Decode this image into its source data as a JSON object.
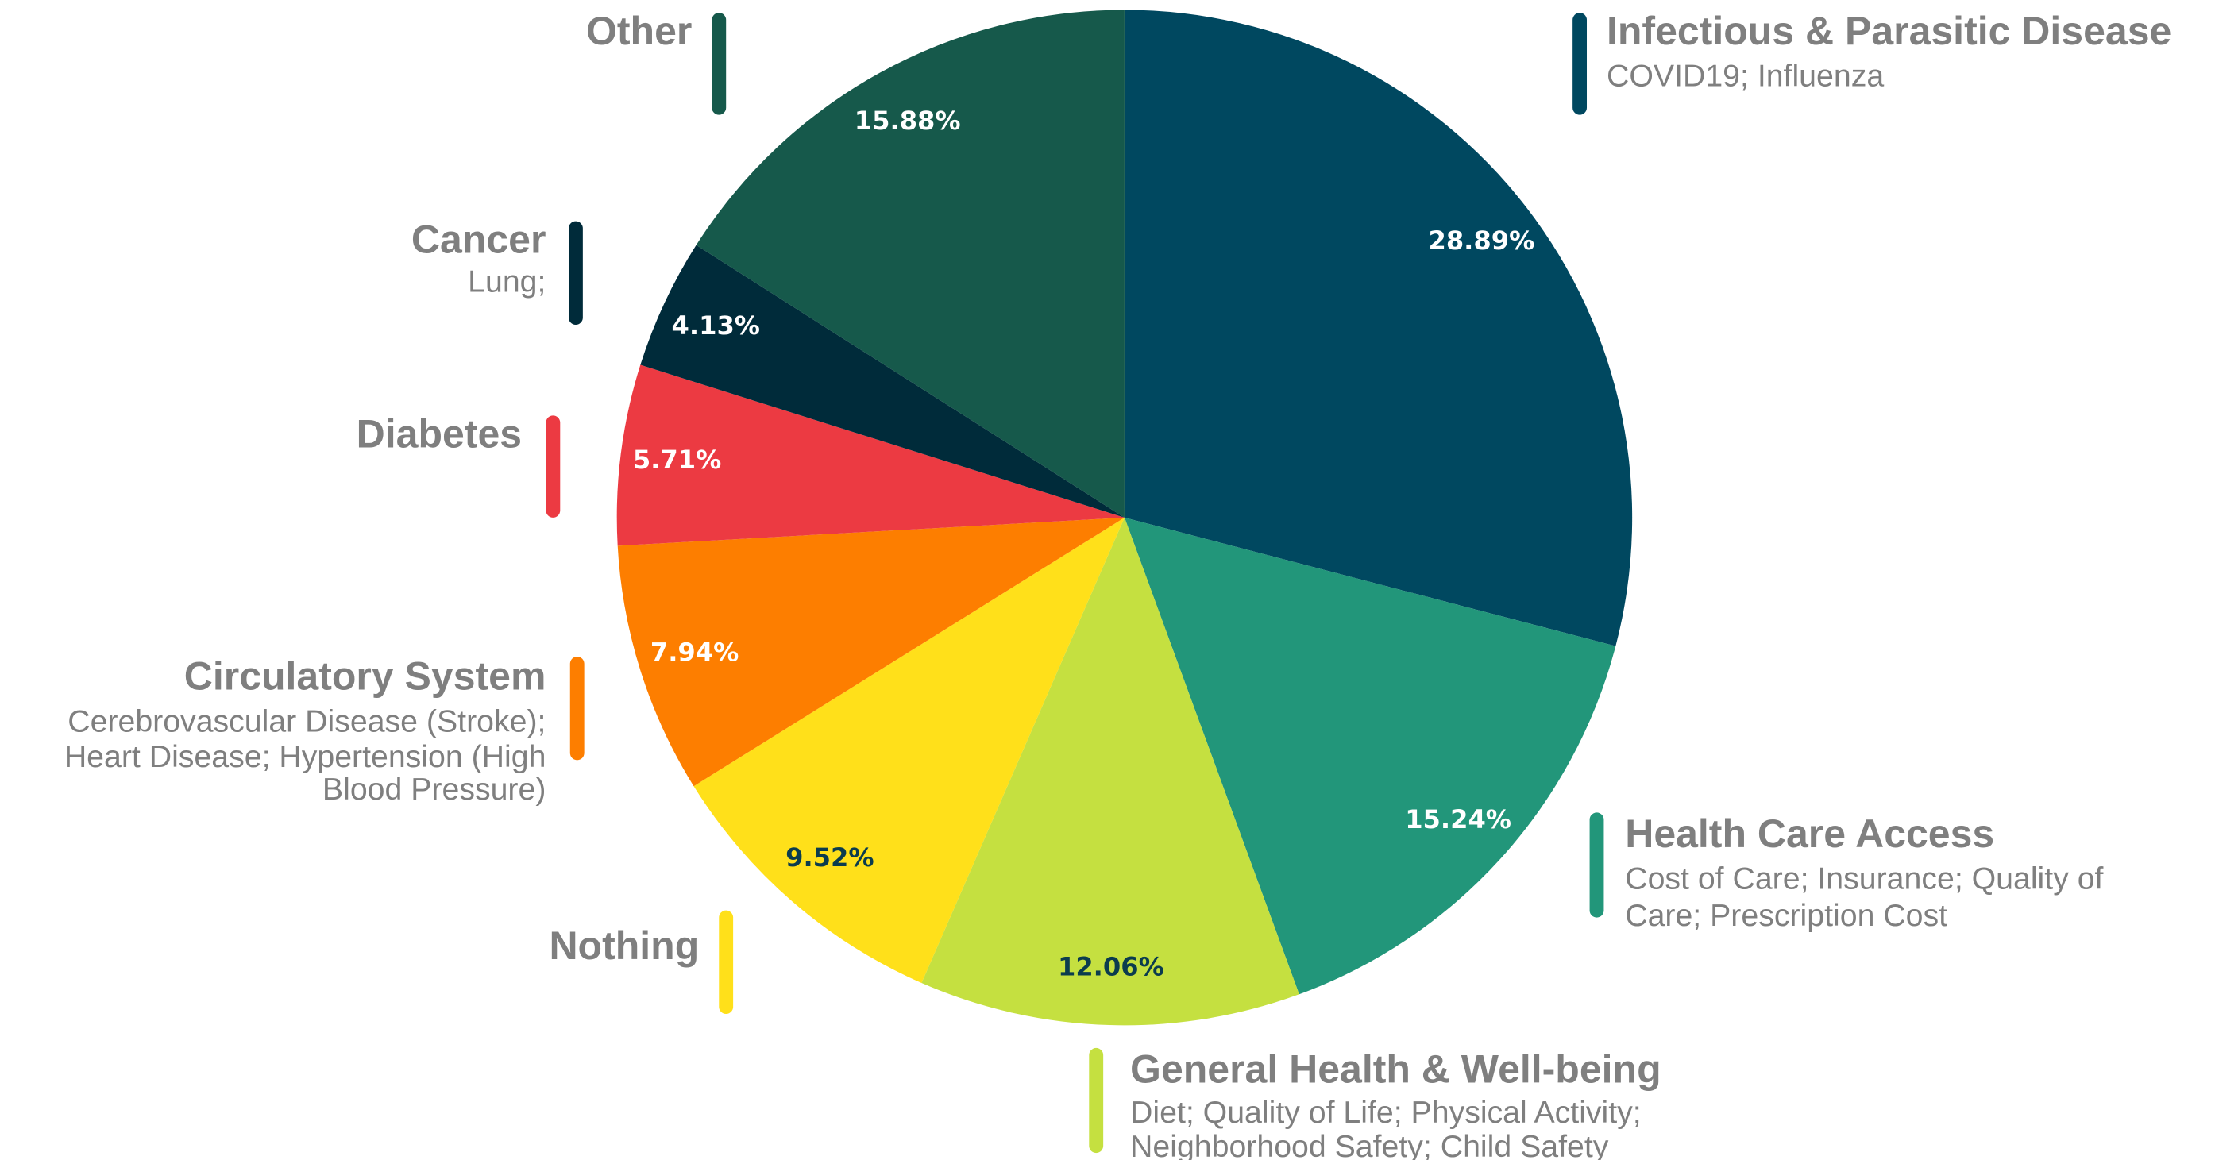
{
  "chart_data": {
    "type": "pie",
    "categories": [
      "Infectious & Parasitic Disease",
      "Health Care Access",
      "General Health & Well-being",
      "Nothing",
      "Circulatory System",
      "Diabetes",
      "Cancer",
      "Other"
    ],
    "values": [
      28.89,
      15.24,
      12.06,
      9.52,
      7.94,
      5.71,
      4.13,
      15.88
    ],
    "value_labels": [
      "28.89%",
      "15.24%",
      "12.06%",
      "9.52%",
      "7.94%",
      "5.71%",
      "4.13%",
      "15.88%"
    ],
    "colors": [
      "#004860",
      "#22967a",
      "#c5e040",
      "#ffe01a",
      "#fd7e00",
      "#ec3a42",
      "#002b3a",
      "#16594b"
    ],
    "value_label_colors": [
      "#ffffff",
      "#ffffff",
      "#0b3c4e",
      "#0b3c4e",
      "#ffffff",
      "#ffffff",
      "#ffffff",
      "#ffffff"
    ],
    "details": [
      [
        "COVID19; Influenza"
      ],
      [
        "Cost of Care; Insurance; Quality of",
        "Care; Prescription Cost"
      ],
      [
        "Diet; Quality of Life; Physical Activity;",
        "Neighborhood Safety; Child Safety"
      ],
      null,
      [
        "Cerebrovascular Disease (Stroke);",
        "Heart Disease; Hypertension (High",
        "Blood Pressure)"
      ],
      null,
      [
        "Lung;"
      ],
      null
    ]
  }
}
